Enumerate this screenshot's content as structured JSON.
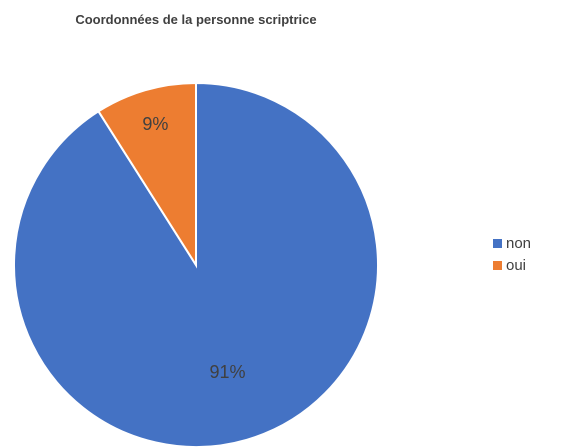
{
  "chart_data": {
    "type": "pie",
    "title": "Coordonnées de la personne scriptrice",
    "categories": [
      "non",
      "oui"
    ],
    "values": [
      91,
      9
    ],
    "data_labels": [
      "91%",
      "9%"
    ],
    "colors": [
      "#4472C4",
      "#ED7D31"
    ],
    "legend_position": "right"
  }
}
